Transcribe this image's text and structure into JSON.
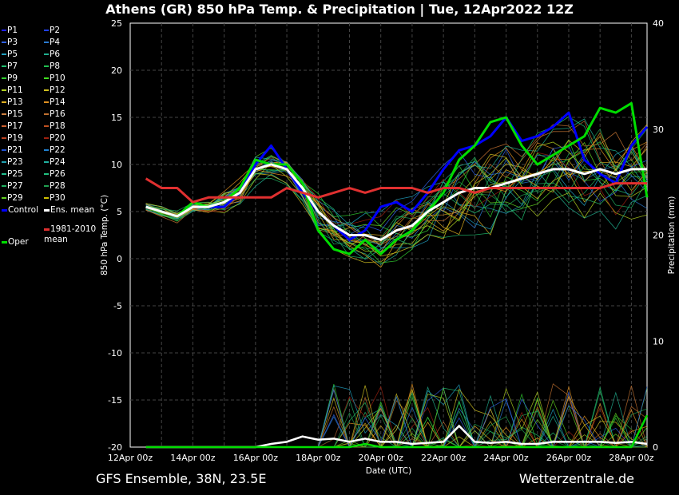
{
  "title": "Athens  (GR)  850 hPa Temp. & Precipitation | Tue, 12Apr2022 12Z",
  "footer": {
    "left": "GFS Ensemble, 38N, 23.5E",
    "right": "Wetterzentrale.de"
  },
  "chart_data": {
    "type": "line",
    "xlabel": "Date (UTC)",
    "ylabel": "850 hPa Temp. (°C)",
    "y2label": "Precipitation (mm)",
    "ylim": [
      -20,
      25
    ],
    "y2lim": [
      0,
      40
    ],
    "xlim_days": [
      0,
      16.5
    ],
    "x_ticks": [
      "12Apr 00z",
      "14Apr 00z",
      "16Apr 00z",
      "18Apr 00z",
      "20Apr 00z",
      "22Apr 00z",
      "24Apr 00z",
      "26Apr 00z",
      "28Apr 00z"
    ],
    "y_ticks": [
      "25",
      "20",
      "15",
      "10",
      "5",
      "0",
      "-5",
      "-10",
      "-15",
      "-20"
    ],
    "y2_ticks": [
      "40",
      "30",
      "20",
      "10",
      "0"
    ],
    "grid": true,
    "legend_position": "left",
    "legend": [
      {
        "label": "P1",
        "color": "#2020ff"
      },
      {
        "label": "P2",
        "color": "#2040ff"
      },
      {
        "label": "P3",
        "color": "#3060e0"
      },
      {
        "label": "P4",
        "color": "#2a7ad0"
      },
      {
        "label": "P5",
        "color": "#20a0c0"
      },
      {
        "label": "P6",
        "color": "#20b090"
      },
      {
        "label": "P7",
        "color": "#20c070"
      },
      {
        "label": "P8",
        "color": "#20c050"
      },
      {
        "label": "P9",
        "color": "#30d030"
      },
      {
        "label": "P10",
        "color": "#40e020"
      },
      {
        "label": "P11",
        "color": "#b0d020"
      },
      {
        "label": "P12",
        "color": "#d0c020"
      },
      {
        "label": "P13",
        "color": "#e0b020"
      },
      {
        "label": "P14",
        "color": "#e09020"
      },
      {
        "label": "P15",
        "color": "#d08040"
      },
      {
        "label": "P16",
        "color": "#c07030"
      },
      {
        "label": "P17",
        "color": "#d06030"
      },
      {
        "label": "P18",
        "color": "#c05020"
      },
      {
        "label": "P19",
        "color": "#c04020"
      },
      {
        "label": "P20",
        "color": "#a02010"
      },
      {
        "label": "P21",
        "color": "#2050d0"
      },
      {
        "label": "P22",
        "color": "#2080d0"
      },
      {
        "label": "P23",
        "color": "#20a0b0"
      },
      {
        "label": "P24",
        "color": "#20b0a0"
      },
      {
        "label": "P25",
        "color": "#20c090"
      },
      {
        "label": "P26",
        "color": "#20c080"
      },
      {
        "label": "P27",
        "color": "#20b060"
      },
      {
        "label": "P28",
        "color": "#20a050"
      },
      {
        "label": "P29",
        "color": "#60d020"
      },
      {
        "label": "P30",
        "color": "#d0c000"
      },
      {
        "label": "Control",
        "color": "#0000ff"
      },
      {
        "label": "Ens. mean",
        "color": "#ffffff"
      },
      {
        "label": "Oper",
        "color": "#00dd00"
      },
      {
        "label": "1981-2010\nmean",
        "color": "#e03030"
      }
    ],
    "x_days": [
      0.5,
      1,
      1.5,
      2,
      2.5,
      3,
      3.5,
      4,
      4.5,
      5,
      5.5,
      6,
      6.5,
      7,
      7.5,
      8,
      8.5,
      9,
      9.5,
      10,
      10.5,
      11,
      11.5,
      12,
      12.5,
      13,
      13.5,
      14,
      14.5,
      15,
      15.5,
      16,
      16.5
    ],
    "series": [
      {
        "name": "Control",
        "color": "#0000ff",
        "values": [
          5.5,
          5,
          4.5,
          5.5,
          5.5,
          5.5,
          7,
          10,
          12,
          9.5,
          7,
          5,
          3.5,
          2,
          3,
          5.5,
          6,
          5,
          7,
          9.5,
          11.5,
          12,
          13,
          15,
          12.5,
          13,
          14,
          15.5,
          10.5,
          9,
          8,
          12,
          14
        ]
      },
      {
        "name": "Oper",
        "color": "#00dd00",
        "values": [
          5.5,
          5,
          4.5,
          6,
          5.5,
          6,
          7.5,
          10.5,
          10,
          10,
          8,
          3,
          1,
          0.5,
          2,
          0.5,
          2,
          3,
          5,
          7,
          10.5,
          12,
          14.5,
          15,
          12,
          10,
          11,
          12,
          13,
          16,
          15.5,
          16.5,
          6.5
        ]
      },
      {
        "name": "Ens. mean",
        "color": "#ffffff",
        "values": [
          5.5,
          5,
          4.5,
          5.5,
          5.5,
          6,
          7,
          9.5,
          10,
          9.5,
          7.5,
          5,
          3.5,
          2.5,
          2.5,
          2,
          3,
          3.5,
          5,
          6,
          7,
          7.5,
          7.5,
          8,
          8.5,
          9,
          9.5,
          9.5,
          9,
          9.5,
          9,
          9.5,
          9.5
        ]
      },
      {
        "name": "1981-2010 mean",
        "color": "#e03030",
        "values": [
          8.5,
          7.5,
          7.5,
          6,
          6.5,
          6.5,
          6.5,
          6.5,
          6.5,
          7.5,
          7,
          6.5,
          7,
          7.5,
          7,
          7.5,
          7.5,
          7.5,
          7,
          7.5,
          7.5,
          7,
          7.5,
          7.5,
          7.5,
          7.5,
          7.5,
          7.5,
          7.5,
          7.5,
          8,
          8,
          8
        ]
      }
    ],
    "precip_series": [
      {
        "name": "Ens. mean",
        "color": "#ffffff",
        "values": [
          0,
          0,
          0,
          0,
          0,
          0,
          0,
          0,
          0.3,
          0.5,
          1,
          0.7,
          0.8,
          0.5,
          0.8,
          0.5,
          0.5,
          0.3,
          0.4,
          0.5,
          2,
          0.5,
          0.4,
          0.5,
          0.3,
          0.3,
          0.5,
          0.5,
          0.5,
          0.5,
          0.4,
          0.5,
          0.3
        ]
      },
      {
        "name": "Oper",
        "color": "#00dd00",
        "values": [
          0,
          0,
          0,
          0,
          0,
          0,
          0,
          0,
          0,
          0,
          0,
          0,
          0,
          0,
          0.3,
          0,
          0,
          0,
          0,
          0,
          0,
          0,
          0,
          0,
          0,
          0,
          0,
          0,
          0,
          0,
          0,
          0,
          3
        ]
      }
    ]
  }
}
